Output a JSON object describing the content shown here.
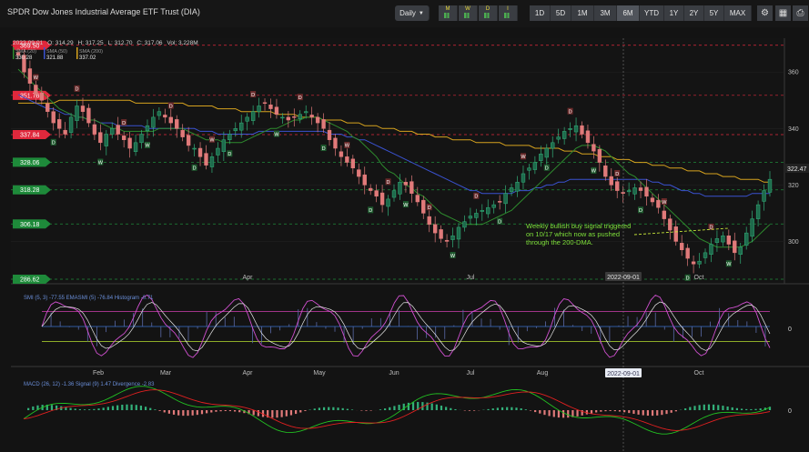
{
  "header": {
    "title": "SPDR Dow Jones Industrial Average ETF Trust (DIA)",
    "interval": "Daily",
    "timeframes": [
      "M",
      "W",
      "D",
      "I"
    ],
    "ranges": [
      "1D",
      "5D",
      "1M",
      "3M",
      "6M",
      "YTD",
      "1Y",
      "2Y",
      "5Y",
      "MAX"
    ],
    "active_range": "6M"
  },
  "ohlc": {
    "date": "2022-09-01",
    "open": "O: 314.29",
    "high": "H: 317.25",
    "low": "L: 312.70",
    "close": "C: 317.06",
    "vol": "Vol: 3.228M"
  },
  "legend": [
    {
      "label": "SMA (20)",
      "value": "330.28",
      "color": "#2e8b2e"
    },
    {
      "label": "SMA (50)",
      "value": "321.88",
      "color": "#3a52d0"
    },
    {
      "label": "SMA (200)",
      "value": "337.02",
      "color": "#d6a21e"
    }
  ],
  "levels": [
    {
      "value": "369.50",
      "color": "#e0283c"
    },
    {
      "value": "351.76",
      "color": "#e0283c"
    },
    {
      "value": "337.84",
      "color": "#e0283c"
    },
    {
      "value": "328.06",
      "color": "#1e8a3a"
    },
    {
      "value": "318.28",
      "color": "#1e8a3a"
    },
    {
      "value": "306.18",
      "color": "#1e8a3a"
    },
    {
      "value": "286.62",
      "color": "#1e8a3a"
    }
  ],
  "annotation": "Weekly bullish buy signal triggered\non 10/17 which now as pushed\nthrough the 200-DMA.",
  "crosshair_date": "2022-09-01",
  "last_price": "322.47",
  "colors": {
    "up": "#33b07a",
    "down": "#e07a7a",
    "smi": "#d050d0",
    "smi_ema": "#e8e8e8",
    "macd": "#22c022",
    "signal": "#e02020"
  },
  "chart_data": [
    {
      "type": "candlestick",
      "title": "SPDR Dow Jones Industrial Average ETF Trust (DIA)",
      "y_ticks": [
        300,
        320,
        340,
        360
      ],
      "ylim": [
        285,
        372
      ],
      "month_labels": [
        "Apr",
        "Jul",
        "Oct"
      ],
      "close": [
        366,
        360,
        356,
        352,
        350,
        346,
        342,
        340,
        338,
        344,
        348,
        346,
        342,
        338,
        335,
        338,
        340,
        338,
        336,
        333,
        335,
        338,
        341,
        344,
        346,
        344,
        342,
        340,
        337,
        334,
        333,
        330,
        327,
        330,
        333,
        336,
        338,
        340,
        342,
        344,
        346,
        348,
        349,
        347,
        345,
        344,
        343,
        344,
        345,
        346,
        344,
        342,
        340,
        336,
        333,
        330,
        328,
        326,
        323,
        320,
        318,
        316,
        313,
        315,
        318,
        321,
        320,
        317,
        314,
        310,
        306,
        303,
        301,
        300,
        302,
        305,
        307,
        309,
        310,
        311,
        312,
        313,
        314,
        317,
        319,
        321,
        324,
        326,
        328,
        331,
        333,
        335,
        337,
        339,
        340,
        341,
        338,
        335,
        332,
        328,
        323,
        320,
        318,
        317,
        318,
        319,
        318,
        316,
        314,
        312,
        308,
        304,
        300,
        297,
        294,
        292,
        293,
        296,
        299,
        301,
        302,
        299,
        296,
        298,
        303,
        308,
        313,
        318,
        322
      ],
      "sma20": [
        361,
        359,
        357,
        355,
        353,
        351,
        349,
        347,
        346,
        345,
        344,
        344,
        343,
        343,
        342,
        341,
        340,
        340,
        339,
        339,
        339,
        339,
        339,
        339,
        340,
        340,
        340,
        340,
        340,
        339,
        338,
        337,
        336,
        336,
        336,
        335,
        335,
        335,
        335,
        336,
        337,
        338,
        339,
        340,
        340,
        341,
        342,
        343,
        343,
        344,
        344,
        344,
        343,
        342,
        341,
        340,
        339,
        337,
        336,
        334,
        332,
        330,
        327,
        325,
        324,
        322,
        320,
        319,
        317,
        316,
        314,
        312,
        310,
        309,
        308,
        307,
        306,
        306,
        306,
        306,
        307,
        308,
        309,
        310,
        311,
        313,
        315,
        317,
        319,
        321,
        323,
        325,
        327,
        329,
        331,
        333,
        334,
        334,
        334,
        333,
        332,
        330,
        328,
        326,
        324,
        323,
        321,
        319,
        317,
        315,
        313,
        311,
        309,
        307,
        305,
        303,
        301,
        300,
        299,
        298,
        298,
        298,
        298,
        298,
        299,
        300,
        302,
        304,
        306
      ],
      "sma50": [
        352,
        351,
        350,
        349,
        348,
        347,
        347,
        346,
        345,
        345,
        344,
        344,
        343,
        343,
        342,
        342,
        342,
        341,
        341,
        341,
        341,
        341,
        340,
        340,
        340,
        340,
        340,
        340,
        340,
        340,
        340,
        339,
        339,
        339,
        338,
        338,
        338,
        338,
        338,
        338,
        338,
        339,
        339,
        339,
        339,
        339,
        339,
        339,
        339,
        339,
        339,
        339,
        339,
        338,
        338,
        338,
        337,
        337,
        336,
        336,
        335,
        334,
        333,
        332,
        331,
        330,
        329,
        328,
        327,
        326,
        325,
        324,
        323,
        322,
        321,
        320,
        319,
        318,
        318,
        317,
        317,
        317,
        317,
        317,
        317,
        318,
        318,
        318,
        319,
        319,
        320,
        320,
        321,
        321,
        322,
        322,
        322,
        322,
        322,
        322,
        322,
        322,
        322,
        322,
        322,
        322,
        322,
        322,
        321,
        321,
        320,
        320,
        319,
        318,
        318,
        317,
        317,
        316,
        316,
        316,
        316,
        316,
        316,
        316,
        316,
        317,
        317,
        317,
        317
      ],
      "sma200": [
        349,
        349,
        349,
        349,
        349,
        349,
        349,
        350,
        350,
        350,
        350,
        350,
        350,
        350,
        350,
        350,
        350,
        350,
        350,
        350,
        349,
        349,
        349,
        349,
        349,
        349,
        349,
        349,
        349,
        348,
        348,
        348,
        348,
        348,
        347,
        347,
        347,
        347,
        346,
        346,
        346,
        346,
        346,
        346,
        345,
        345,
        345,
        345,
        344,
        344,
        344,
        344,
        343,
        343,
        343,
        343,
        342,
        342,
        342,
        341,
        341,
        341,
        340,
        340,
        340,
        339,
        339,
        339,
        338,
        338,
        338,
        337,
        337,
        337,
        336,
        336,
        336,
        336,
        335,
        335,
        335,
        335,
        335,
        334,
        334,
        334,
        334,
        334,
        333,
        333,
        333,
        333,
        333,
        332,
        332,
        332,
        331,
        331,
        331,
        330,
        330,
        330,
        329,
        329,
        329,
        328,
        328,
        328,
        327,
        327,
        327,
        326,
        326,
        326,
        325,
        325,
        325,
        324,
        324,
        324,
        323,
        323,
        323,
        322,
        322,
        322,
        322,
        321,
        321
      ]
    },
    {
      "type": "line",
      "title": "SMI (5, 3) -77.55 EMASMI (5) -76.84 Histogram -0.71",
      "ylim": [
        -100,
        100
      ],
      "zero_label": "0",
      "month_labels": [
        "Feb",
        "Mar",
        "Apr",
        "May",
        "Jun",
        "Jul",
        "Aug",
        "Sep",
        "Oct"
      ]
    },
    {
      "type": "bar",
      "title": "MACD (26, 12) -1.36 Signal (9) 1.47 Divergence -2.83",
      "zero_label": "0"
    }
  ]
}
